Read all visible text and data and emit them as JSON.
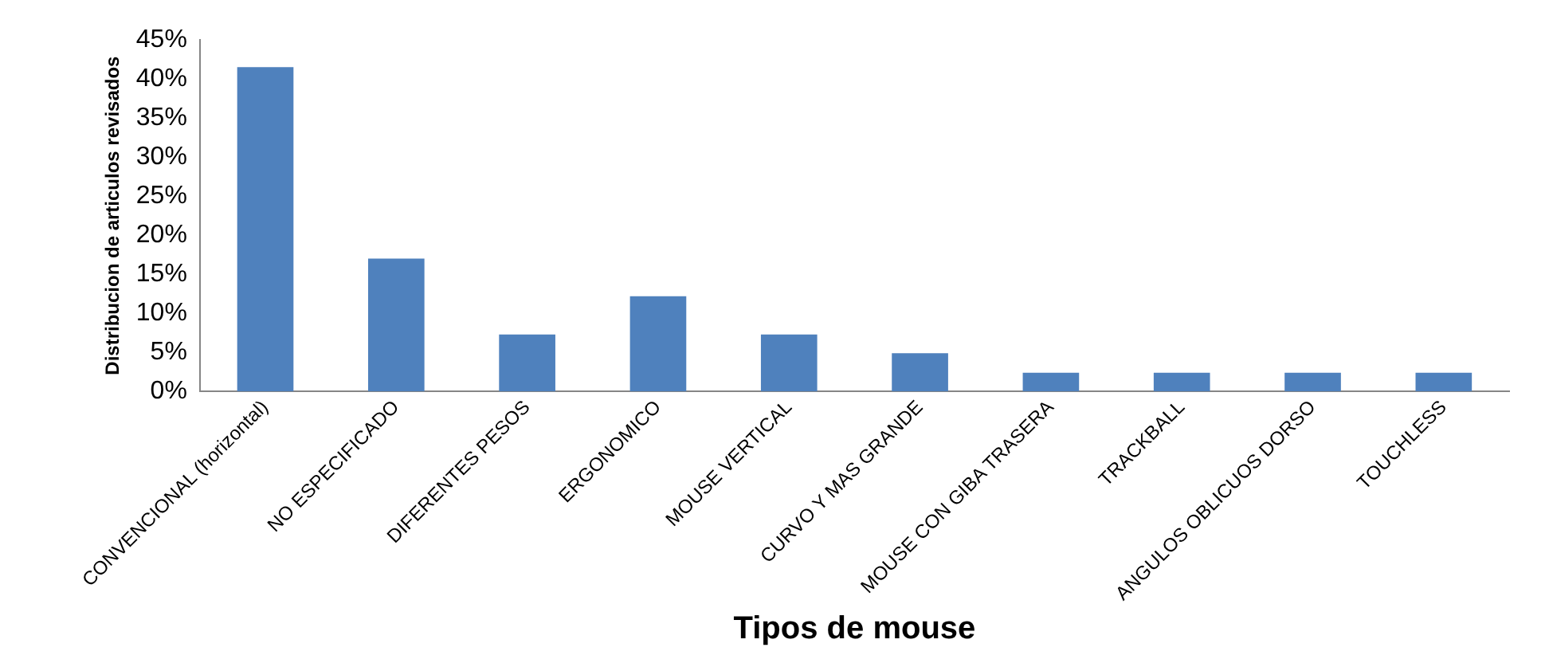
{
  "chart_data": {
    "type": "bar",
    "xlabel": "Tipos de mouse",
    "ylabel": "Distribucion de articulos revisados",
    "categories": [
      "CONVENCIONAL (horizontal)",
      "NO ESPECIFICADO",
      "DIFERENTES PESOS",
      "ERGONOMICO",
      "MOUSE VERTICAL",
      "CURVO Y MAS GRANDE",
      "MOUSE CON GIBA TRASERA",
      "TRACKBALL",
      "ANGULOS OBLICUOS DORSO",
      "TOUCHLESS"
    ],
    "values": [
      41.5,
      17,
      7.3,
      12.2,
      7.3,
      4.9,
      2.4,
      2.4,
      2.4,
      2.4
    ],
    "color": "#4f81bd",
    "ylim": [
      0,
      45
    ],
    "yticks": [
      {
        "value": 0,
        "label": "0%"
      },
      {
        "value": 5,
        "label": "5%"
      },
      {
        "value": 10,
        "label": "10%"
      },
      {
        "value": 15,
        "label": "15%"
      },
      {
        "value": 20,
        "label": "20%"
      },
      {
        "value": 25,
        "label": "25%"
      },
      {
        "value": 30,
        "label": "30%"
      },
      {
        "value": 35,
        "label": "35%"
      },
      {
        "value": 40,
        "label": "40%"
      },
      {
        "value": 45,
        "label": "45%"
      }
    ],
    "grid": false,
    "legend": false
  }
}
